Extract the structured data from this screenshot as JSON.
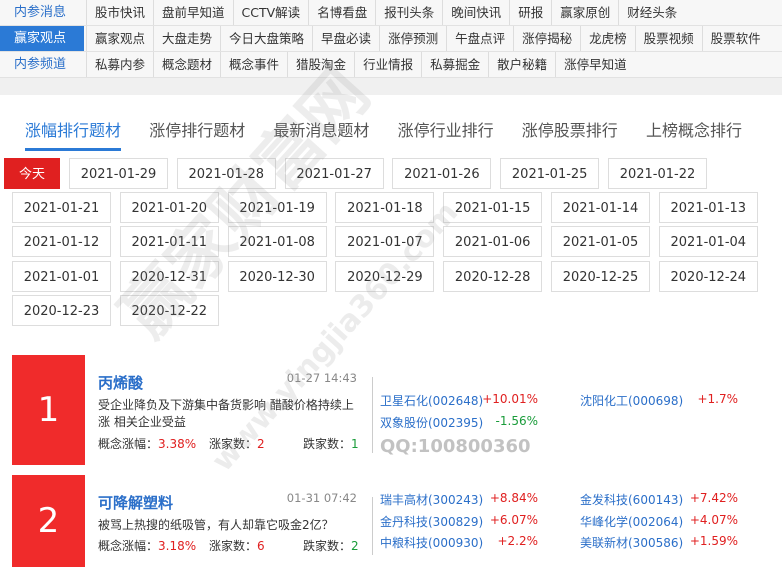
{
  "nav": [
    {
      "label": "内参消息",
      "links": [
        "股市快讯",
        "盘前早知道",
        "CCTV解读",
        "名博看盘",
        "报刊头条",
        "晚间快讯",
        "研报",
        "赢家原创",
        "财经头条"
      ]
    },
    {
      "label": "赢家观点",
      "links": [
        "赢家观点",
        "大盘走势",
        "今日大盘策略",
        "早盘必读",
        "涨停预测",
        "午盘点评",
        "涨停揭秘",
        "龙虎榜",
        "股票视频",
        "股票软件"
      ]
    },
    {
      "label": "内参频道",
      "links": [
        "私募内参",
        "概念题材",
        "概念事件",
        "猎股淘金",
        "行业情报",
        "私募掘金",
        "散户秘籍",
        "涨停早知道"
      ]
    }
  ],
  "tabs": [
    "涨幅排行题材",
    "涨停排行题材",
    "最新消息题材",
    "涨停行业排行",
    "涨停股票排行",
    "上榜概念排行"
  ],
  "dates": [
    "今天",
    "2021-01-29",
    "2021-01-28",
    "2021-01-27",
    "2021-01-26",
    "2021-01-25",
    "2021-01-22",
    "2021-01-21",
    "2021-01-20",
    "2021-01-19",
    "2021-01-18",
    "2021-01-15",
    "2021-01-14",
    "2021-01-13",
    "2021-01-12",
    "2021-01-11",
    "2021-01-08",
    "2021-01-07",
    "2021-01-06",
    "2021-01-05",
    "2021-01-04",
    "2021-01-01",
    "2020-12-31",
    "2020-12-30",
    "2020-12-29",
    "2020-12-28",
    "2020-12-25",
    "2020-12-24",
    "2020-12-23",
    "2020-12-22"
  ],
  "cards": [
    {
      "rank": "1",
      "title": "丙烯酸",
      "time": "01-27 14:43",
      "desc": "受企业降负及下游集中备货影响 醋酸价格持续上涨 相关企业受益",
      "stats": [
        {
          "label": "概念涨幅：",
          "value": "3.38%"
        },
        {
          "label": "涨家数：",
          "value": "2"
        },
        {
          "label": "跌家数：",
          "value": "1"
        }
      ],
      "stocks": [
        {
          "name": "卫星石化(002648)",
          "change": "+10.01%"
        },
        {
          "name": "沈阳化工(000698)",
          "change": "+1.7%"
        },
        {
          "name": "双象股份(002395)",
          "change": "-1.56%"
        }
      ]
    },
    {
      "rank": "2",
      "title": "可降解塑料",
      "time": "01-31 07:42",
      "desc": "被骂上热搜的纸吸管，有人却靠它吸金2亿？",
      "stats": [
        {
          "label": "概念涨幅：",
          "value": "3.18%"
        },
        {
          "label": "涨家数：",
          "value": "6"
        },
        {
          "label": "跌家数：",
          "value": "2"
        }
      ],
      "stocks": [
        {
          "name": "瑞丰高材(300243)",
          "change": "+8.84%"
        },
        {
          "name": "金发科技(600143)",
          "change": "+7.42%"
        },
        {
          "name": "金丹科技(300829)",
          "change": "+6.07%"
        },
        {
          "name": "华峰化学(002064)",
          "change": "+4.07%"
        },
        {
          "name": "中粮科技(000930)",
          "change": "+2.2%"
        },
        {
          "name": "美联新材(300586)",
          "change": "+1.59%"
        }
      ]
    }
  ],
  "watermark": {
    "main": "赢家财富网",
    "url": "www.yingjia360.com",
    "qq": "QQ:100800360"
  }
}
